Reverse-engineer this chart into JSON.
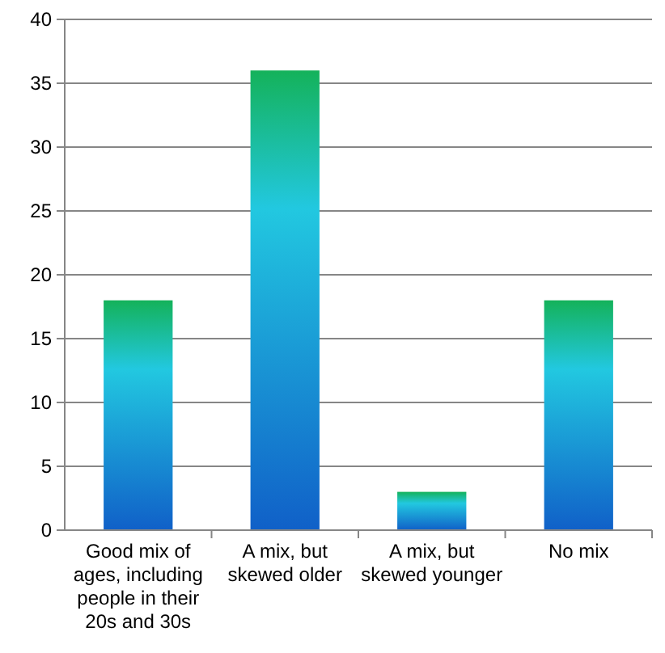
{
  "chart_data": {
    "type": "bar",
    "categories": [
      "Good mix of ages, including people in their 20s and 30s",
      "A mix, but skewed older",
      "A mix, but skewed younger",
      "No mix"
    ],
    "values": [
      18,
      36,
      3,
      18
    ],
    "color": "#22c8e0",
    "ylim": [
      0,
      40
    ],
    "yticks": [
      0,
      5,
      10,
      15,
      20,
      25,
      30,
      35,
      40
    ],
    "grid": "y"
  }
}
